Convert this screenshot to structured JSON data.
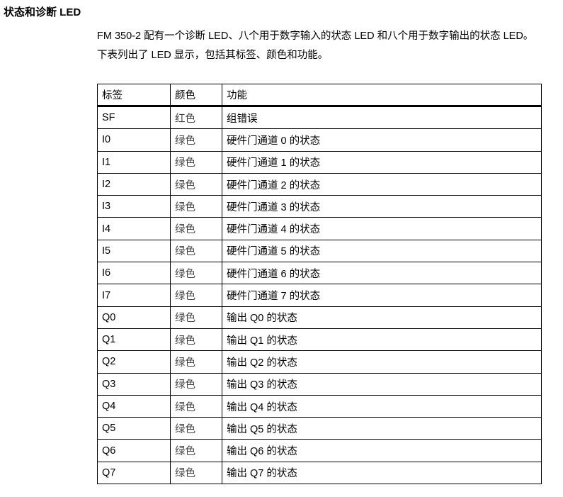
{
  "heading": "状态和诊断 LED",
  "paragraph": "FM 350-2 配有一个诊断 LED、八个用于数字输入的状态 LED 和八个用于数字输出的状态 LED。 下表列出了 LED 显示，包括其标签、颜色和功能。",
  "table": {
    "headers": [
      "标签",
      "颜色",
      "功能"
    ],
    "rows": [
      [
        "SF",
        "红色",
        "组错误"
      ],
      [
        "I0",
        "绿色",
        "硬件门通道 0 的状态"
      ],
      [
        "I1",
        "绿色",
        "硬件门通道 1 的状态"
      ],
      [
        "I2",
        "绿色",
        "硬件门通道 2 的状态"
      ],
      [
        "I3",
        "绿色",
        "硬件门通道 3 的状态"
      ],
      [
        "I4",
        "绿色",
        "硬件门通道 4 的状态"
      ],
      [
        "I5",
        "绿色",
        "硬件门通道 5 的状态"
      ],
      [
        "I6",
        "绿色",
        "硬件门通道 6 的状态"
      ],
      [
        "I7",
        "绿色",
        "硬件门通道 7 的状态"
      ],
      [
        "Q0",
        "绿色",
        "输出 Q0 的状态"
      ],
      [
        "Q1",
        "绿色",
        "输出 Q1 的状态"
      ],
      [
        "Q2",
        "绿色",
        "输出 Q2 的状态"
      ],
      [
        "Q3",
        "绿色",
        "输出 Q3 的状态"
      ],
      [
        "Q4",
        "绿色",
        "输出 Q4 的状态"
      ],
      [
        "Q5",
        "绿色",
        "输出 Q5 的状态"
      ],
      [
        "Q6",
        "绿色",
        "输出 Q6 的状态"
      ],
      [
        "Q7",
        "绿色",
        "输出 Q7 的状态"
      ]
    ]
  }
}
